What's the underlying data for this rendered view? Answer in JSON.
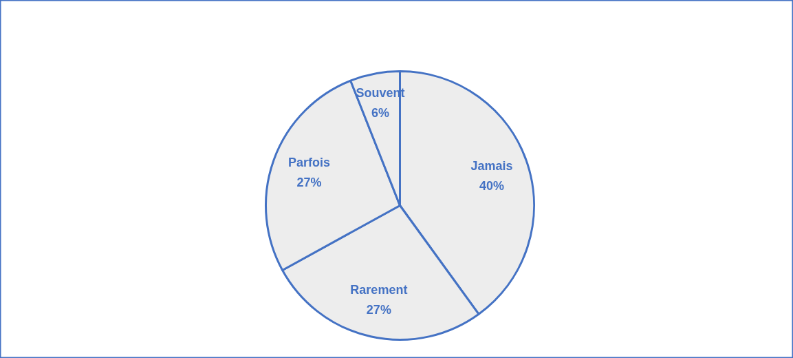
{
  "chart_data": {
    "type": "pie",
    "categories": [
      "Jamais",
      "Rarement",
      "Parfois",
      "Souvent"
    ],
    "values": [
      40,
      27,
      27,
      6
    ],
    "colors": [
      "#ededed",
      "#ededed",
      "#ededed",
      "#ededed"
    ],
    "value_labels": [
      "40%",
      "27%",
      "27%",
      "6%"
    ]
  }
}
